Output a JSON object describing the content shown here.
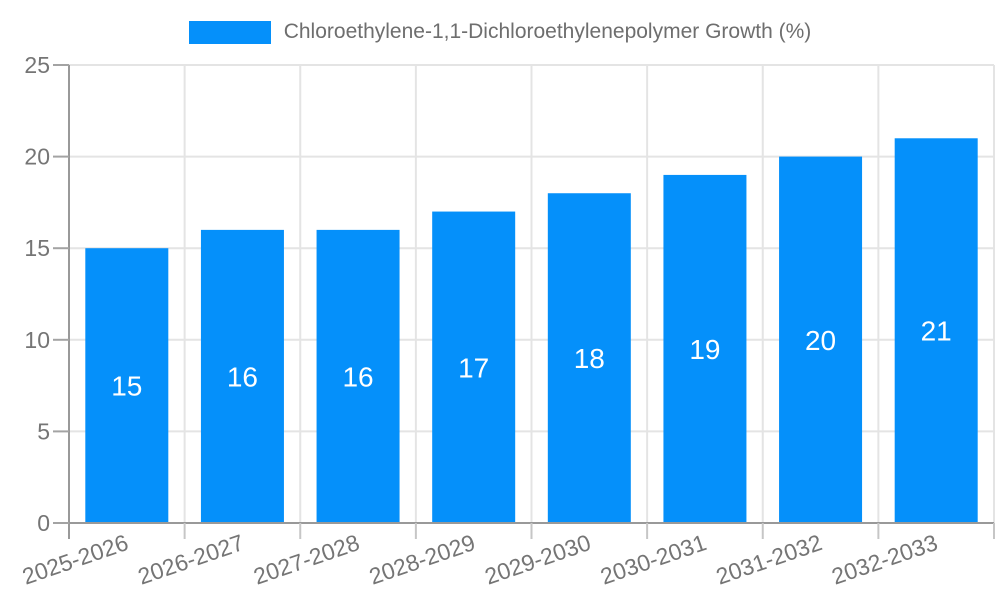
{
  "legend": {
    "series_label": "Chloroethylene-1,1-Dichloroethylenepolymer Growth (%)",
    "position": "top"
  },
  "chart_data": {
    "type": "bar",
    "title": "Chloroethylene-1,1-Dichloroethylenepolymer Growth (%)",
    "categories": [
      "2025-2026",
      "2026-2027",
      "2027-2028",
      "2028-2029",
      "2029-2030",
      "2030-2031",
      "2031-2032",
      "2032-2033"
    ],
    "series": [
      {
        "name": "Chloroethylene-1,1-Dichloroethylenepolymer Growth (%)",
        "values": [
          15,
          16,
          16,
          17,
          18,
          19,
          20,
          21
        ]
      }
    ],
    "value_labels": [
      15,
      16,
      16,
      17,
      18,
      19,
      20,
      21
    ],
    "xlabel": "",
    "ylabel": "",
    "ylim": [
      0,
      25
    ],
    "yticks": [
      0,
      5,
      10,
      15,
      20,
      25
    ],
    "grid": true,
    "legend_position": "top",
    "x_label_rotation_deg": -19
  },
  "colors": {
    "bar_fill": "#0590fa",
    "grid_line": "#e4e4e4",
    "axis_line": "#999999",
    "y_tick_mark": "#a3a3a3",
    "x_tick_mark": "#c6c6c6",
    "axis_label_text": "#757575",
    "title_text": "#6e6e6e",
    "bar_value_text": "#ffffff",
    "background": "#ffffff"
  }
}
